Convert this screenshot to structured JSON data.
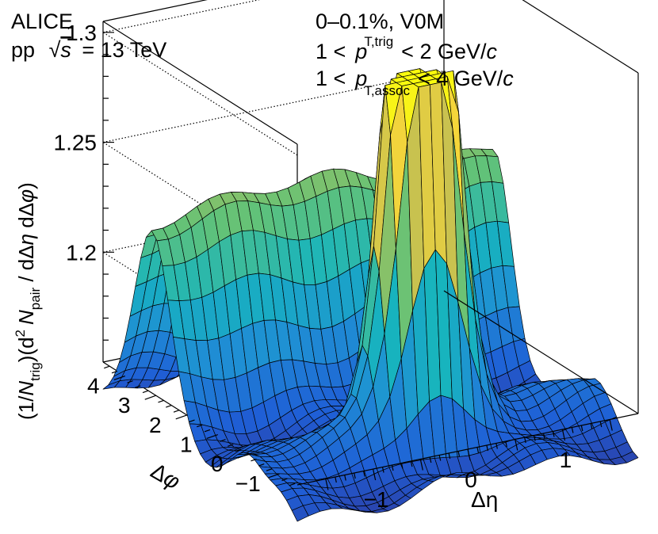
{
  "chart_data": {
    "type": "surface3d",
    "title_experiment": "ALICE",
    "collision_system": "pp",
    "sqrt_s_symbol": "s",
    "energy_text": "= 13 TeV",
    "multiplicity_class": "0–0.1%, V0M",
    "trigger_cut": {
      "lower": "1 <",
      "var": "p",
      "sub": "T,trig",
      "upper": "< 2 GeV/",
      "unit_italic": "c"
    },
    "assoc_cut": {
      "lower": "1 <",
      "var": "p",
      "sub": "T,assoc",
      "upper": "< 4 GeV/",
      "unit_italic": "c"
    },
    "zlabel": {
      "part1": "(1/",
      "N": "N",
      "trig": "trig",
      "part2": ")(d",
      "two": "2",
      "N2": "N",
      "pair": "pair",
      "part3": " / dΔ",
      "eta": "η",
      "part4": " dΔ",
      "phi": "φ",
      "part5": ")"
    },
    "xlabel": "Δη",
    "ylabel_delta": "Δ",
    "ylabel_phi": "φ",
    "eta_range": [
      -1.8,
      1.8
    ],
    "phi_range": [
      -1.571,
      4.712
    ],
    "zlim": [
      1.15,
      1.305
    ],
    "eta_ticks": [
      {
        "value": -1,
        "label": "−1"
      },
      {
        "value": 0,
        "label": "0"
      },
      {
        "value": 1,
        "label": "1"
      }
    ],
    "phi_ticks": [
      {
        "value": -1,
        "label": "−1"
      },
      {
        "value": 0,
        "label": "0"
      },
      {
        "value": 1,
        "label": "1"
      },
      {
        "value": 2,
        "label": "2"
      },
      {
        "value": 3,
        "label": "3"
      },
      {
        "value": 4,
        "label": "4"
      }
    ],
    "z_ticks": [
      {
        "value": 1.2,
        "label": "1.2"
      },
      {
        "value": 1.25,
        "label": "1.25"
      },
      {
        "value": 1.3,
        "label": "1.3"
      }
    ],
    "surface_model": {
      "baseline": 1.135,
      "away_side_ridge_height": 0.095,
      "away_side_ridge_center_phi": 3.1416,
      "away_side_ridge_width": 0.55,
      "near_side_ridge_height": 0.018,
      "near_side_ridge_width": 0.45,
      "near_side_peak_height": 0.35,
      "near_side_peak_width_eta": 0.28,
      "near_side_peak_width_phi": 0.32,
      "clip_max": 1.305,
      "grid_eta_bins": 30,
      "grid_phi_bins": 36
    },
    "colormap": [
      "#352a87",
      "#1f5fd6",
      "#1f8fd4",
      "#17b4be",
      "#62c278",
      "#c2bf52",
      "#f6d63a",
      "#f9fb0e"
    ]
  }
}
